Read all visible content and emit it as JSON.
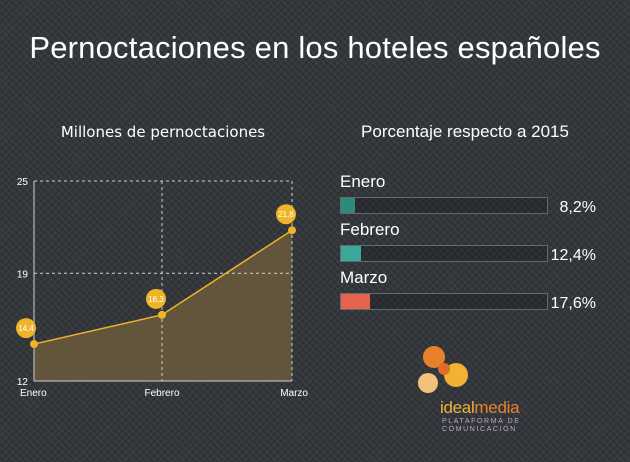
{
  "title": "Pernoctaciones en los hoteles españoles",
  "left_subtitle": "Millones de pernoctaciones",
  "right_subtitle": "Porcentaje respecto a 2015",
  "colors": {
    "line": "#f0b429",
    "area": "#6b5a3c",
    "bar_enero": "#2e8b7c",
    "bar_febrero": "#3aa99a",
    "bar_marzo": "#e5634e"
  },
  "chart_data": [
    {
      "type": "area",
      "title": "Millones de pernoctaciones",
      "categories": [
        "Enero",
        "Febrero",
        "Marzo"
      ],
      "values": [
        14.4,
        16.3,
        21.8
      ],
      "data_labels": [
        "14,4",
        "16,3",
        "21,8"
      ],
      "ylim": [
        12,
        25
      ],
      "yticks": [
        12,
        19,
        25
      ],
      "grid": true
    },
    {
      "type": "bar",
      "title": "Porcentaje respecto a 2015",
      "categories": [
        "Enero",
        "Febrero",
        "Marzo"
      ],
      "values": [
        8.2,
        12.4,
        17.6
      ],
      "value_labels": [
        "8,2%",
        "12,4%",
        "17,6%"
      ],
      "xlim": [
        0,
        100
      ]
    }
  ],
  "logo": {
    "word_a": "ideal",
    "word_b": "media",
    "tagline_1": "PLATAFORMA DE",
    "tagline_2": "COMUNICACIÓN"
  }
}
